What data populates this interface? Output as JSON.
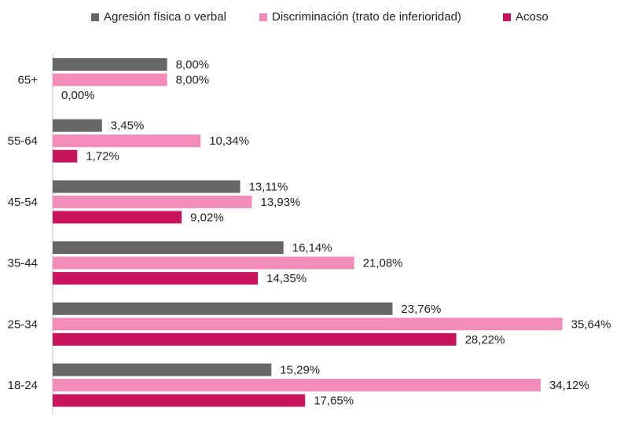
{
  "chart_data": {
    "type": "bar",
    "orientation": "horizontal",
    "categories": [
      "65+",
      "55-64",
      "45-54",
      "35-44",
      "25-34",
      "18-24"
    ],
    "series": [
      {
        "name": "Agresión física o verbal",
        "color": "#666666",
        "values": [
          8.0,
          3.45,
          13.11,
          16.14,
          23.76,
          15.29
        ],
        "labels": [
          "8,00%",
          "3,45%",
          "13,11%",
          "16,14%",
          "23,76%",
          "15,29%"
        ]
      },
      {
        "name": "Discriminación (trato de inferioridad)",
        "color": "#f48cba",
        "values": [
          8.0,
          10.34,
          13.93,
          21.08,
          35.64,
          34.12
        ],
        "labels": [
          "8,00%",
          "10,34%",
          "13,93%",
          "21,08%",
          "35,64%",
          "34,12%"
        ]
      },
      {
        "name": "Acoso",
        "color": "#c8145e",
        "values": [
          0.0,
          1.72,
          9.02,
          14.35,
          28.22,
          17.65
        ],
        "labels": [
          "0,00%",
          "1,72%",
          "9,02%",
          "14,35%",
          "28,22%",
          "17,65%"
        ]
      }
    ],
    "title": "",
    "xlabel": "",
    "ylabel": "",
    "xlim": [
      0,
      36.5
    ],
    "grid": false,
    "legend_position": "top"
  }
}
